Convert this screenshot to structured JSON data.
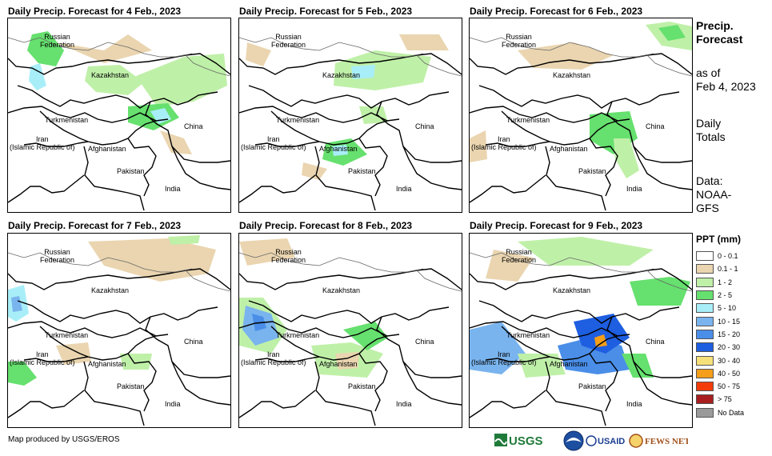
{
  "panels": [
    {
      "title": "Daily Precip. Forecast for 4 Feb., 2023"
    },
    {
      "title": "Daily Precip. Forecast for 5 Feb., 2023"
    },
    {
      "title": "Daily Precip. Forecast for 6 Feb., 2023"
    },
    {
      "title": "Daily Precip. Forecast for 7 Feb., 2023"
    },
    {
      "title": "Daily Precip. Forecast for 8 Feb., 2023"
    },
    {
      "title": "Daily Precip. Forecast for 9 Feb., 2023"
    }
  ],
  "map_labels": {
    "russia": "Russian Federation",
    "kazakhstan": "Kazakhstan",
    "turkmenistan": "Turkmenistan",
    "iran": "Iran (Islamic Republic of)",
    "afghanistan": "Afghanistan",
    "pakistan": "Pakistan",
    "china": "China",
    "india": "India"
  },
  "sidebar": {
    "heading_line1": "Precip.",
    "heading_line2": "Forecast",
    "asof_line1": "as of",
    "asof_line2": "Feb 4, 2023",
    "totals_line1": "Daily",
    "totals_line2": "Totals",
    "data_line1": "Data:",
    "data_line2": "NOAA-",
    "data_line3": "GFS"
  },
  "legend": {
    "title": "PPT (mm)",
    "items": [
      {
        "label": "0 - 0.1",
        "color": "#ffffff"
      },
      {
        "label": "0.1 - 1",
        "color": "#ead5b0"
      },
      {
        "label": "1 - 2",
        "color": "#bff0a8"
      },
      {
        "label": "2 - 5",
        "color": "#66e06e"
      },
      {
        "label": "5 - 10",
        "color": "#a8eef8"
      },
      {
        "label": "10 - 15",
        "color": "#7ab4ee"
      },
      {
        "label": "15 - 20",
        "color": "#4a8ee8"
      },
      {
        "label": "20 - 30",
        "color": "#1e5ee0"
      },
      {
        "label": "30 - 40",
        "color": "#f6e07a"
      },
      {
        "label": "40 - 50",
        "color": "#f49e1a"
      },
      {
        "label": "50 - 75",
        "color": "#f43c0a"
      },
      {
        "label": "> 75",
        "color": "#a81e1e"
      },
      {
        "label": "No Data",
        "color": "#9a9a9a"
      }
    ]
  },
  "credit": "Map produced by USGS/EROS",
  "logos": {
    "usgs": "USGS",
    "usaid": "USAID",
    "fews": "FEWS NET"
  }
}
